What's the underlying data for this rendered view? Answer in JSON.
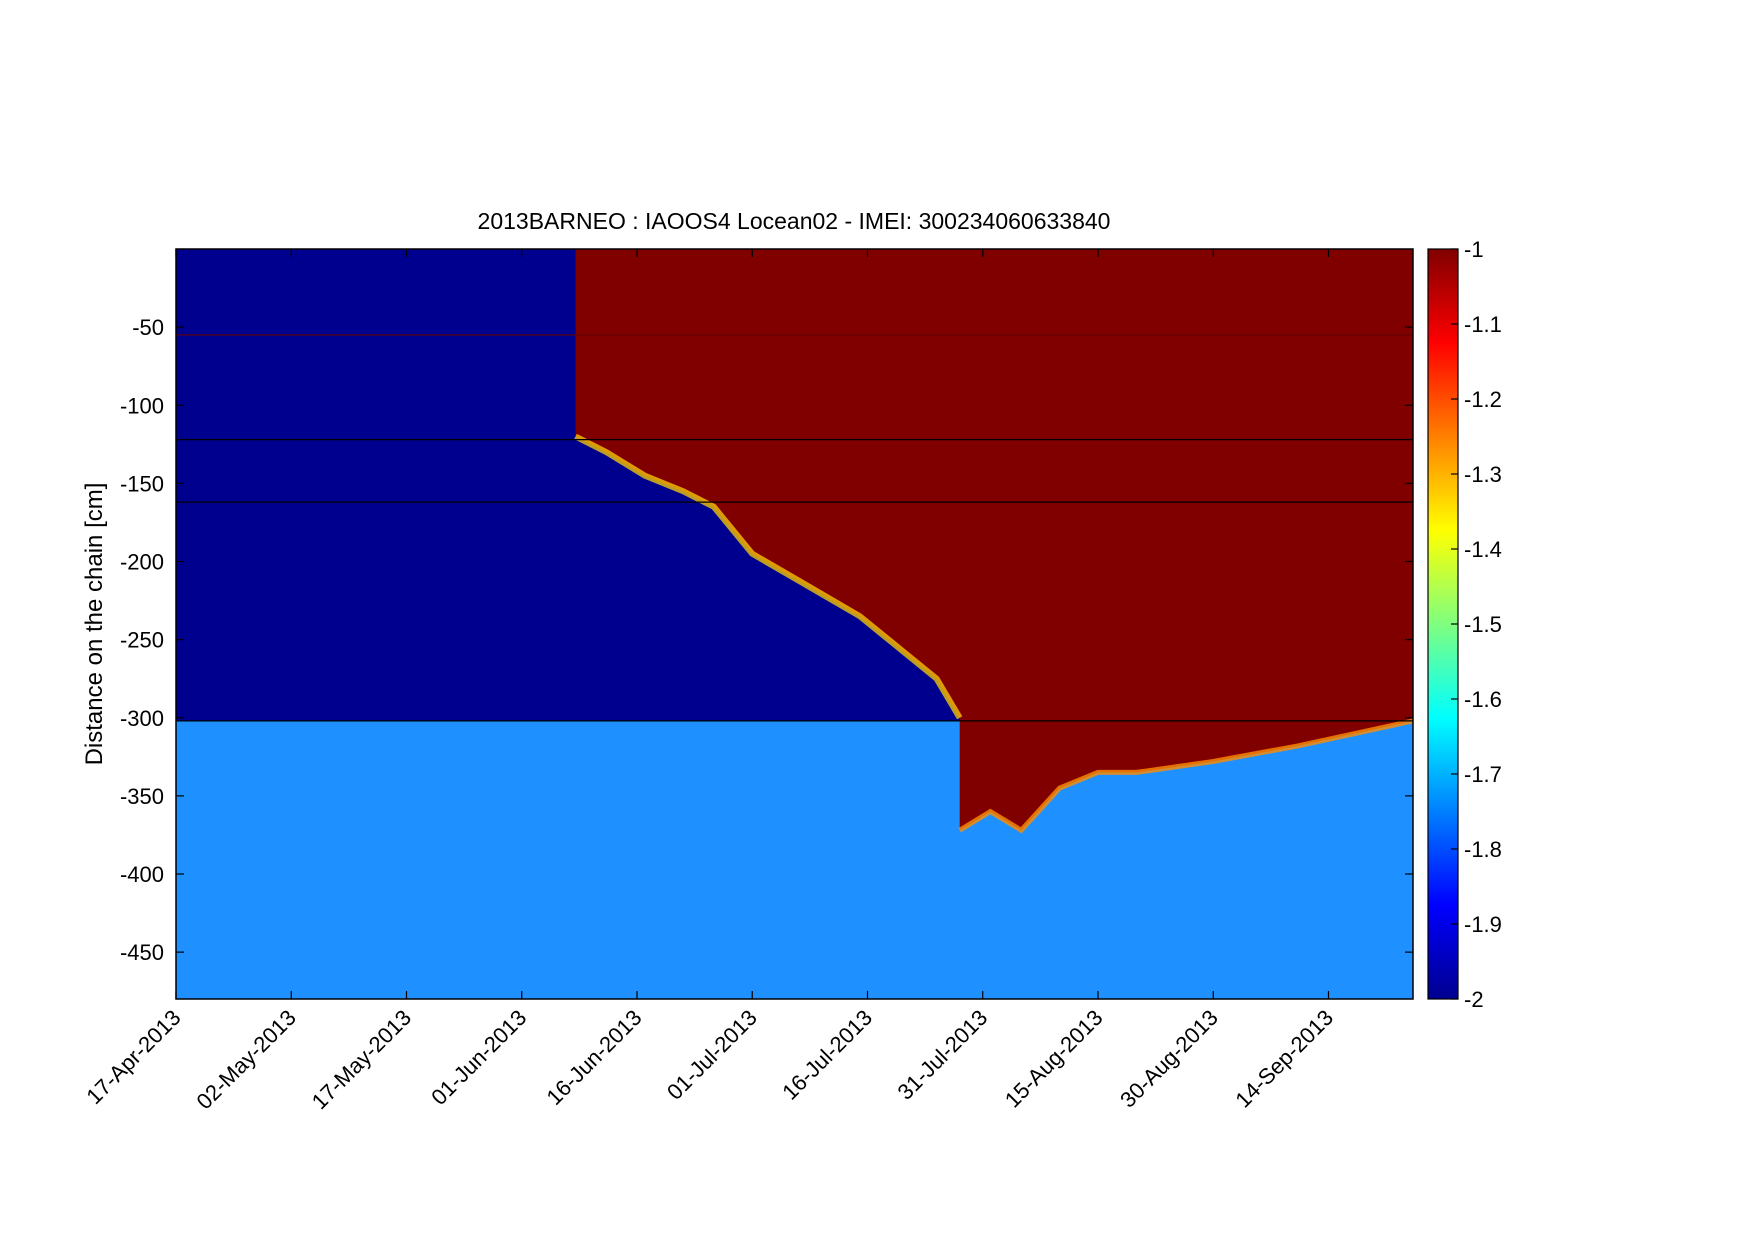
{
  "chart_data": {
    "type": "heatmap",
    "title": "2013BARNEO : IAOOS4  Locean02 - IMEI: 300234060633840",
    "xlabel": "",
    "ylabel": "Distance on the chain [cm]",
    "x_range": [
      "2013-04-17",
      "2013-09-25"
    ],
    "ylim": [
      -480,
      0
    ],
    "x_ticks": [
      "17-Apr-2013",
      "02-May-2013",
      "17-May-2013",
      "01-Jun-2013",
      "16-Jun-2013",
      "01-Jul-2013",
      "16-Jul-2013",
      "31-Jul-2013",
      "15-Aug-2013",
      "30-Aug-2013",
      "14-Sep-2013"
    ],
    "y_ticks": [
      -50,
      -100,
      -150,
      -200,
      -250,
      -300,
      -350,
      -400,
      -450
    ],
    "colorbar": {
      "colormap": "jet",
      "clim": [
        -2,
        -1
      ],
      "ticks": [
        "-1",
        "-1.1",
        "-1.2",
        "-1.3",
        "-1.4",
        "-1.5",
        "-1.6",
        "-1.7",
        "-1.8",
        "-1.9",
        "-2"
      ]
    },
    "reference_lines_cm": [
      -55,
      -122,
      -162,
      -302
    ],
    "values": {
      "cold_ice_base_cm": [
        {
          "date": "2013-04-17",
          "depth": -302
        },
        {
          "date": "2013-06-15",
          "depth": -302
        },
        {
          "date": "2013-07-28",
          "depth": -302
        }
      ],
      "warm_front_cm": [
        {
          "date": "2013-06-08",
          "depth": -120
        },
        {
          "date": "2013-06-12",
          "depth": -130
        },
        {
          "date": "2013-06-17",
          "depth": -145
        },
        {
          "date": "2013-06-22",
          "depth": -155
        },
        {
          "date": "2013-06-26",
          "depth": -165
        },
        {
          "date": "2013-07-01",
          "depth": -195
        },
        {
          "date": "2013-07-08",
          "depth": -215
        },
        {
          "date": "2013-07-15",
          "depth": -235
        },
        {
          "date": "2013-07-20",
          "depth": -255
        },
        {
          "date": "2013-07-25",
          "depth": -275
        },
        {
          "date": "2013-07-28",
          "depth": -300
        }
      ],
      "melt_bottom_cm": [
        {
          "date": "2013-07-28",
          "depth": -372
        },
        {
          "date": "2013-08-01",
          "depth": -360
        },
        {
          "date": "2013-08-05",
          "depth": -372
        },
        {
          "date": "2013-08-10",
          "depth": -345
        },
        {
          "date": "2013-08-15",
          "depth": -335
        },
        {
          "date": "2013-08-20",
          "depth": -335
        },
        {
          "date": "2013-08-30",
          "depth": -328
        },
        {
          "date": "2013-09-10",
          "depth": -318
        },
        {
          "date": "2013-09-25",
          "depth": -302
        }
      ]
    },
    "colors": {
      "cold": "#00008f",
      "warm": "#800000",
      "water": "#1e90ff"
    }
  }
}
